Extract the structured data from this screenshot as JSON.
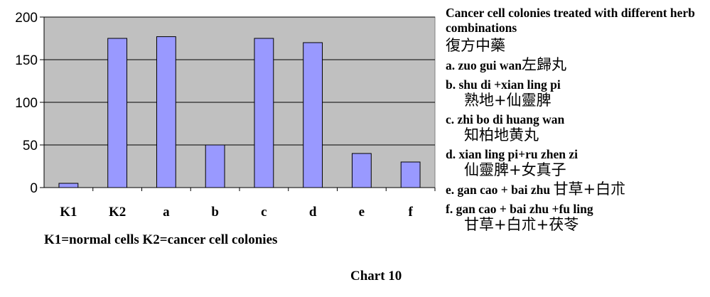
{
  "chart_data": {
    "type": "bar",
    "categories": [
      "K1",
      "K2",
      "a",
      "b",
      "c",
      "d",
      "e",
      "f"
    ],
    "values": [
      5,
      175,
      177,
      50,
      175,
      170,
      40,
      30
    ],
    "ylim": [
      0,
      200
    ],
    "yticks": [
      0,
      50,
      100,
      150,
      200
    ],
    "grid": true,
    "colors": {
      "plot_bg": "#c0c0c0",
      "bar": "#9999ff",
      "bar_stroke": "#000000"
    }
  },
  "note": "K1=normal cells   K2=cancer cell colonies",
  "caption": "Chart 10",
  "legend": {
    "title": "Cancer cell colonies treated with different herb combinations",
    "title_hanzi": "復方中藥",
    "entries": [
      {
        "letter": "a.",
        "text": "zuo gui wan",
        "hanzi": "左歸丸",
        "sub": ""
      },
      {
        "letter": "b.",
        "text": "shu di +xian ling pi",
        "hanzi": "",
        "sub": "熟地+仙靈脾"
      },
      {
        "letter": "c.",
        "text": "zhi bo di huang wan",
        "hanzi": "",
        "sub": "知柏地黄丸"
      },
      {
        "letter": "d.",
        "text": "xian ling pi+ru zhen zi",
        "hanzi": "",
        "sub": "仙靈脾+女真子"
      },
      {
        "letter": "e.",
        "text": "gan cao + bai zhu",
        "hanzi": "甘草+白朮",
        "sub": ""
      },
      {
        "letter": "f.",
        "text": "gan cao + bai zhu +fu ling",
        "hanzi": "",
        "sub": "甘草+白朮+茯苓"
      }
    ]
  }
}
